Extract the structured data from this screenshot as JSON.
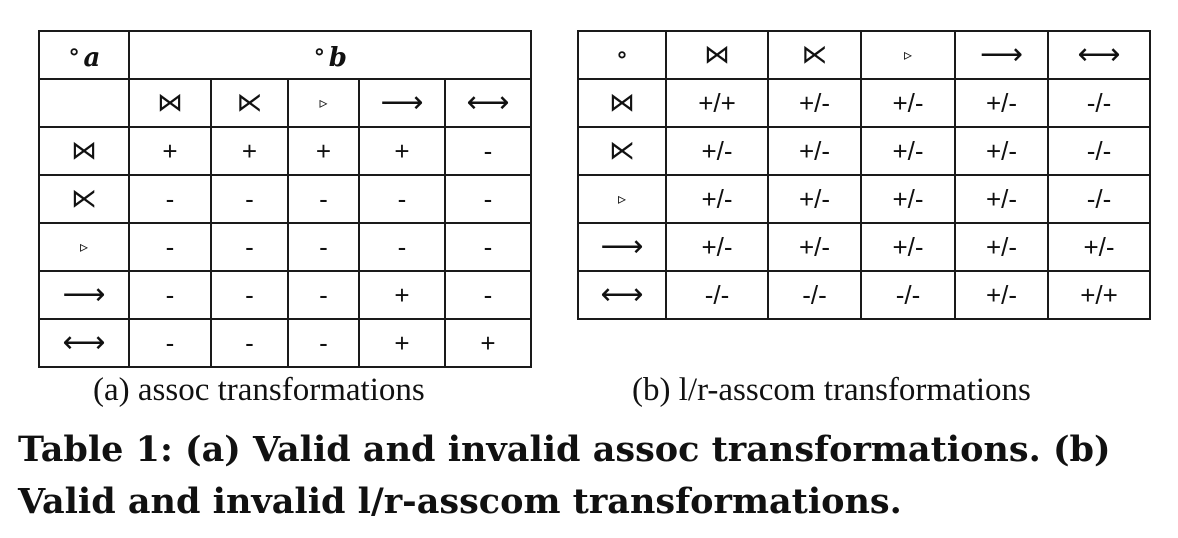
{
  "table_a": {
    "corner_symbol": "∘",
    "corner_subscript": "a",
    "header_symbol": "∘",
    "header_subscript": "b",
    "columns": [
      {
        "symbol": "⋈",
        "icon": "join-icon"
      },
      {
        "symbol": "⋉",
        "icon": "left-semijoin-icon"
      },
      {
        "symbol": "▹",
        "icon": "antijoin-icon"
      },
      {
        "symbol": "⟶",
        "icon": "left-outer-join-icon"
      },
      {
        "symbol": "⟷",
        "icon": "full-outer-join-icon"
      }
    ],
    "rows": [
      {
        "symbol": "⋈",
        "cells": [
          "+",
          "+",
          "+",
          "+",
          "-"
        ]
      },
      {
        "symbol": "⋉",
        "cells": [
          "-",
          "-",
          "-",
          "-",
          "-"
        ]
      },
      {
        "symbol": "▹",
        "cells": [
          "-",
          "-",
          "-",
          "-",
          "-"
        ]
      },
      {
        "symbol": "⟶",
        "cells": [
          "-",
          "-",
          "-",
          "+",
          "-"
        ]
      },
      {
        "symbol": "⟷",
        "cells": [
          "-",
          "-",
          "-",
          "+",
          "+"
        ]
      }
    ]
  },
  "table_b": {
    "corner_symbol": "∘",
    "columns": [
      {
        "symbol": "⋈",
        "icon": "join-icon"
      },
      {
        "symbol": "⋉",
        "icon": "left-semijoin-icon"
      },
      {
        "symbol": "▹",
        "icon": "antijoin-icon"
      },
      {
        "symbol": "⟶",
        "icon": "left-outer-join-icon"
      },
      {
        "symbol": "⟷",
        "icon": "full-outer-join-icon"
      }
    ],
    "rows": [
      {
        "symbol": "⋈",
        "cells": [
          "+/+",
          "+/-",
          "+/-",
          "+/-",
          "-/-"
        ]
      },
      {
        "symbol": "⋉",
        "cells": [
          "+/-",
          "+/-",
          "+/-",
          "+/-",
          "-/-"
        ]
      },
      {
        "symbol": "▹",
        "cells": [
          "+/-",
          "+/-",
          "+/-",
          "+/-",
          "-/-"
        ]
      },
      {
        "symbol": "⟶",
        "cells": [
          "+/-",
          "+/-",
          "+/-",
          "+/-",
          "+/-"
        ]
      },
      {
        "symbol": "⟷",
        "cells": [
          "-/-",
          "-/-",
          "-/-",
          "+/-",
          "+/+"
        ]
      }
    ]
  },
  "subcaption_a": "(a) assoc transformations",
  "subcaption_b": "(b) l/r-asscom transformations",
  "caption": "Table 1: (a) Valid and invalid assoc transformations. (b) Valid and invalid l/r-asscom transformations."
}
